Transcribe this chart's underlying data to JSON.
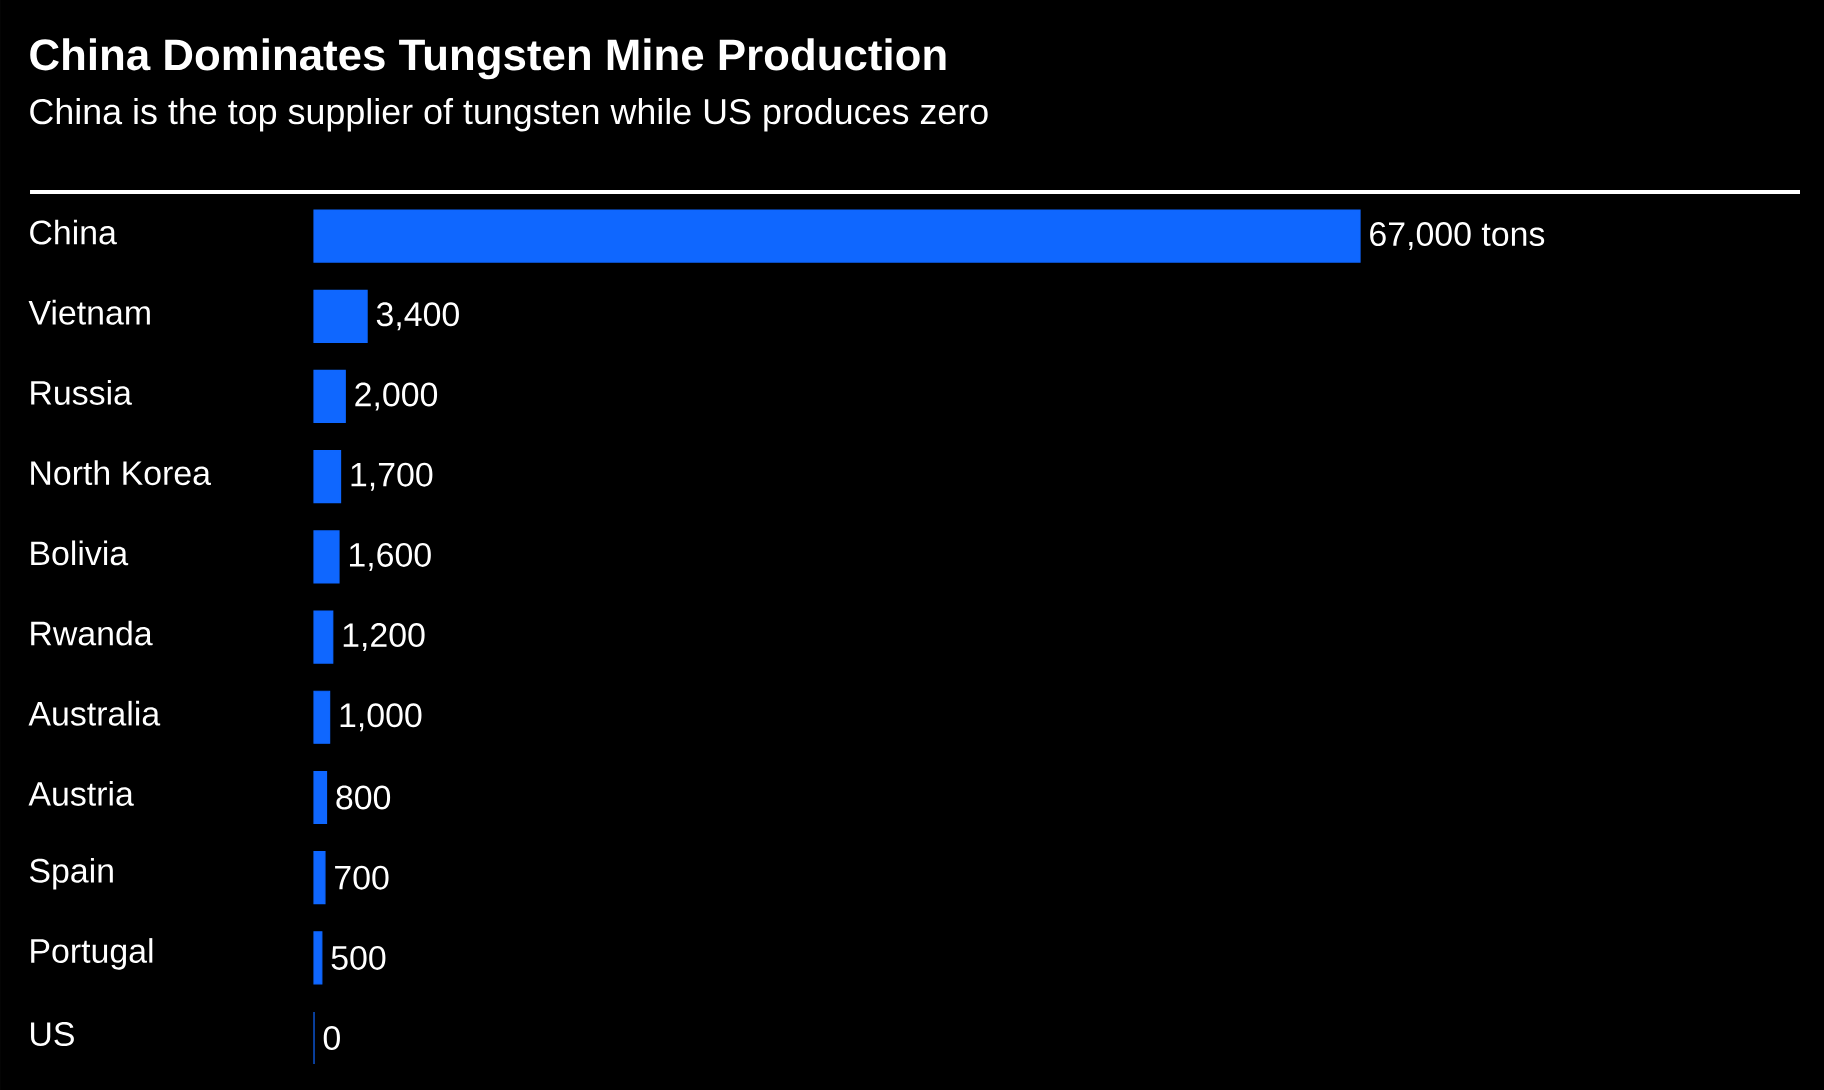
{
  "chart_data": {
    "type": "bar",
    "orientation": "horizontal",
    "title": "China Dominates Tungsten Mine Production",
    "subtitle": "China is the top supplier of tungsten while US produces zero",
    "categories": [
      "China",
      "Vietnam",
      "Russia",
      "North Korea",
      "Bolivia",
      "Rwanda",
      "Australia",
      "Austria",
      "Spain",
      "Portugal",
      "US"
    ],
    "values": [
      67000,
      3400,
      2000,
      1700,
      1600,
      1200,
      1000,
      800,
      700,
      500,
      0
    ],
    "value_labels": [
      "67,000 tons",
      "3,400",
      "2,000",
      "1,700",
      "1,600",
      "1,200",
      "1,000",
      "800",
      "700",
      "500",
      "0"
    ],
    "color": "#0f67ff"
  }
}
